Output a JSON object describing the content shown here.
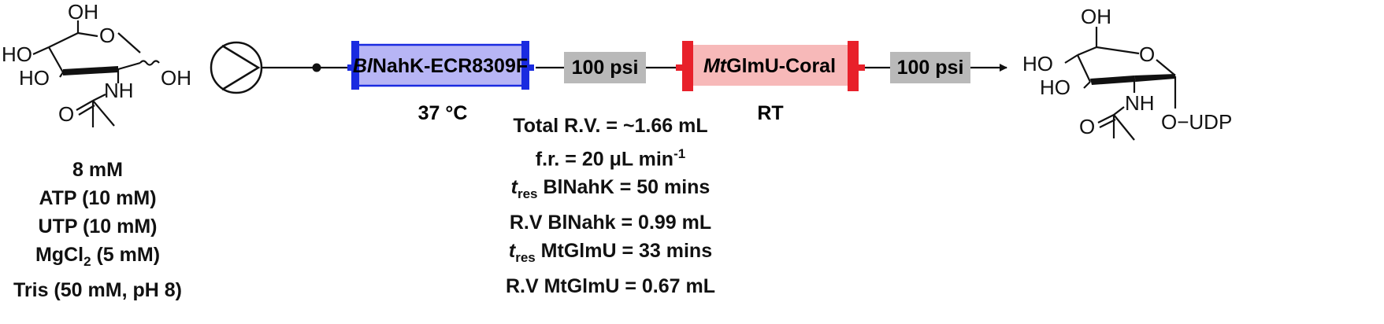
{
  "substrate": {
    "oh_top": "OH",
    "ho_ring": "HO",
    "ho_lower": "HO",
    "o_ring": "O",
    "oh_anomeric": "OH",
    "nh": "NH",
    "o_carbonyl": "O",
    "conditions": {
      "concentration": "8 mM",
      "atp": "ATP (10 mM)",
      "utp": "UTP (10 mM)",
      "mgcl2_prefix": "MgCl",
      "mgcl2_sub": "2",
      "mgcl2_suffix": " (5 mM)",
      "tris": "Tris (50 mM, pH 8)"
    }
  },
  "reactor1": {
    "label_italic": "Bl",
    "label_rest": "NahK-ECR8309F",
    "temperature": "37 °C",
    "colors": {
      "fill": "#b7b5f5",
      "border": "#1a2be0"
    }
  },
  "bpr1": {
    "label": "100 psi",
    "color": "#b9b9b9"
  },
  "reactor2": {
    "label_italic": "Mt",
    "label_rest": "GlmU-Coral",
    "temperature": "RT",
    "colors": {
      "fill": "#f7b9b9",
      "border": "#e8202a"
    }
  },
  "bpr2": {
    "label": "100 psi",
    "color": "#b9b9b9"
  },
  "flow_params": {
    "total_rv": "Total R.V. = ~1.66 mL",
    "fr_prefix": "f.r. = 20 μL min",
    "fr_sup": "-1",
    "tres1_italic": "t",
    "tres1_sub": "res",
    "tres1_rest": " BlNahK = 50 mins",
    "rv1": "R.V BlNahk = 0.99 mL",
    "tres2_italic": "t",
    "tres2_sub": "res",
    "tres2_rest": " MtGlmU = 33 mins",
    "rv2": "R.V MtGlmU = 0.67 mL"
  },
  "product": {
    "oh_top": "OH",
    "ho_ring": "HO",
    "ho_lower": "HO",
    "o_ring": "O",
    "nh": "NH",
    "o_carbonyl": "O",
    "udp": "O−UDP"
  }
}
